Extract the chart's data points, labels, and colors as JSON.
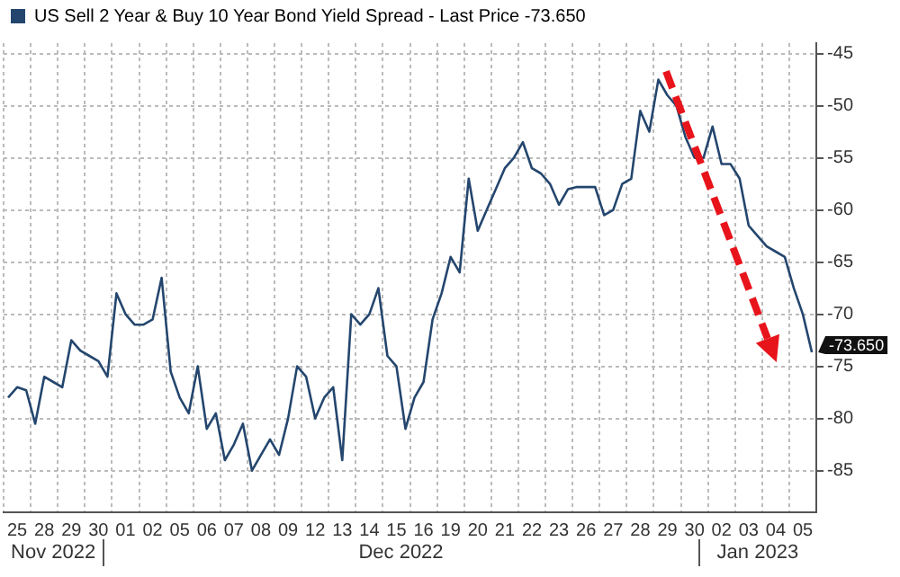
{
  "chart_data": {
    "type": "line",
    "categories": [
      null,
      "25",
      null,
      null,
      "28",
      null,
      null,
      "29",
      null,
      null,
      "30",
      null,
      null,
      "01",
      null,
      null,
      "02",
      null,
      null,
      "05",
      null,
      null,
      "06",
      null,
      null,
      "07",
      null,
      null,
      "08",
      null,
      null,
      "09",
      null,
      null,
      "12",
      null,
      null,
      "13",
      null,
      null,
      "14",
      null,
      null,
      "15",
      null,
      null,
      "16",
      null,
      null,
      "19",
      null,
      null,
      "20",
      null,
      null,
      "21",
      null,
      null,
      "22",
      null,
      null,
      "23",
      null,
      null,
      "26",
      null,
      null,
      "27",
      null,
      null,
      "28",
      null,
      null,
      "29",
      null,
      null,
      "30",
      null,
      null,
      "02",
      null,
      null,
      "03",
      null,
      null,
      "04",
      null,
      null,
      "05",
      null
    ],
    "series": [
      {
        "name": "US Sell 2 Year & Buy 10 Year Bond Yield Spread - Last Price -73.650",
        "color": "#24466e",
        "values": [
          -78,
          -77,
          -77.3,
          -80.5,
          -76,
          -76.5,
          -77,
          -72.5,
          -73.5,
          -74,
          -74.5,
          -76,
          -68,
          -70,
          -71,
          -71,
          -70.5,
          -66.5,
          -75.5,
          -78,
          -79.5,
          -75,
          -81,
          -79.5,
          -84,
          -82.5,
          -80.5,
          -85,
          -83.5,
          -82,
          -83.5,
          -80,
          -75,
          -76,
          -80,
          -78,
          -77,
          -84,
          -70,
          -71,
          -70,
          -67.5,
          -74,
          -75,
          -81,
          -78,
          -76.5,
          -70.5,
          -68,
          -64.5,
          -66,
          -57,
          -62,
          -60,
          -58,
          -56,
          -55,
          -53.5,
          -56,
          -56.5,
          -57.5,
          -59.5,
          -58,
          -57.8,
          -57.8,
          -57.8,
          -60.5,
          -60,
          -57.5,
          -57,
          -50.5,
          -52.5,
          -47.5,
          -49,
          -50,
          -53,
          -55,
          -55,
          -52,
          -55.6,
          -55.6,
          -57,
          -61.5,
          -62.5,
          -63.5,
          -64,
          -64.5,
          -67.5,
          -70,
          -73.65
        ]
      }
    ],
    "ylim": [
      -89,
      -44
    ],
    "yticks": [
      -45,
      -50,
      -55,
      -60,
      -65,
      -70,
      -75,
      -80,
      -85
    ],
    "grid": true,
    "legend": "top left",
    "annotations": [
      "Nov 2022",
      "Dec 2022",
      "Jan 2023",
      "-73.650"
    ]
  }
}
